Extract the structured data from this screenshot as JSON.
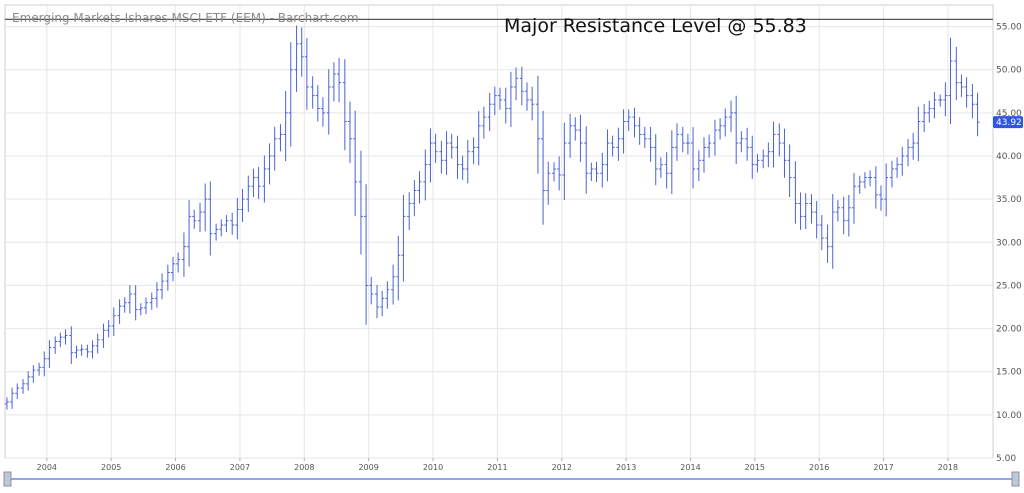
{
  "chart_data": {
    "type": "ohlc",
    "title": "Emerging Markets Ishares MSCI ETF (EEM) - Barchart.com",
    "annotation": "Major Resistance Level @ 55.83",
    "resistance_level": 55.83,
    "last_price": "43.92",
    "last_price_value": 43.92,
    "ylim": [
      5,
      57.5
    ],
    "xlim": [
      2003.35,
      2018.7
    ],
    "y_ticks": [
      "5.00",
      "10.00",
      "15.00",
      "20.00",
      "25.00",
      "30.00",
      "35.00",
      "40.00",
      "45.00",
      "50.00",
      "55.00"
    ],
    "y_tick_values": [
      5,
      10,
      15,
      20,
      25,
      30,
      35,
      40,
      45,
      50,
      55
    ],
    "x_ticks": [
      "2004",
      "2005",
      "2006",
      "2007",
      "2008",
      "2009",
      "2010",
      "2011",
      "2012",
      "2013",
      "2014",
      "2015",
      "2016",
      "2017",
      "2018"
    ],
    "x_tick_values": [
      2004,
      2005,
      2006,
      2007,
      2008,
      2009,
      2010,
      2011,
      2012,
      2013,
      2014,
      2015,
      2016,
      2017,
      2018
    ],
    "grid": true,
    "interval": "monthly",
    "series_color": "#4a62d8",
    "resistance_color": "#555555",
    "close_series": [
      [
        2003.38,
        11.5
      ],
      [
        2003.46,
        12.5
      ],
      [
        2003.54,
        13.1
      ],
      [
        2003.63,
        13.6
      ],
      [
        2003.71,
        14.4
      ],
      [
        2003.79,
        15.2
      ],
      [
        2003.88,
        15.5
      ],
      [
        2003.96,
        16.5
      ],
      [
        2004.04,
        17.8
      ],
      [
        2004.13,
        18.5
      ],
      [
        2004.21,
        19.0
      ],
      [
        2004.29,
        19.2
      ],
      [
        2004.38,
        17.2
      ],
      [
        2004.46,
        17.5
      ],
      [
        2004.54,
        17.6
      ],
      [
        2004.63,
        17.3
      ],
      [
        2004.71,
        18.0
      ],
      [
        2004.79,
        18.7
      ],
      [
        2004.88,
        19.8
      ],
      [
        2004.96,
        20.3
      ],
      [
        2005.04,
        21.5
      ],
      [
        2005.13,
        22.6
      ],
      [
        2005.21,
        23.0
      ],
      [
        2005.29,
        24.0
      ],
      [
        2005.38,
        22.2
      ],
      [
        2005.46,
        22.4
      ],
      [
        2005.54,
        23.0
      ],
      [
        2005.63,
        23.5
      ],
      [
        2005.71,
        24.5
      ],
      [
        2005.79,
        25.5
      ],
      [
        2005.88,
        26.5
      ],
      [
        2005.96,
        27.5
      ],
      [
        2006.04,
        28.0
      ],
      [
        2006.13,
        29.5
      ],
      [
        2006.21,
        33.0
      ],
      [
        2006.29,
        32.5
      ],
      [
        2006.38,
        33.5
      ],
      [
        2006.46,
        35.0
      ],
      [
        2006.54,
        31.0
      ],
      [
        2006.63,
        31.5
      ],
      [
        2006.71,
        32.0
      ],
      [
        2006.79,
        32.5
      ],
      [
        2006.88,
        32.0
      ],
      [
        2006.96,
        33.8
      ],
      [
        2007.04,
        35.0
      ],
      [
        2007.13,
        36.5
      ],
      [
        2007.21,
        37.5
      ],
      [
        2007.29,
        36.5
      ],
      [
        2007.38,
        38.5
      ],
      [
        2007.46,
        40.0
      ],
      [
        2007.54,
        42.0
      ],
      [
        2007.63,
        42.5
      ],
      [
        2007.71,
        45.0
      ],
      [
        2007.79,
        50.0
      ],
      [
        2007.88,
        53.0
      ],
      [
        2007.96,
        51.5
      ],
      [
        2008.04,
        48.0
      ],
      [
        2008.13,
        47.0
      ],
      [
        2008.21,
        45.5
      ],
      [
        2008.29,
        45.0
      ],
      [
        2008.38,
        48.0
      ],
      [
        2008.46,
        49.5
      ],
      [
        2008.54,
        48.5
      ],
      [
        2008.63,
        44.0
      ],
      [
        2008.71,
        42.0
      ],
      [
        2008.79,
        37.0
      ],
      [
        2008.88,
        33.0
      ],
      [
        2008.96,
        25.0
      ],
      [
        2009.04,
        24.0
      ],
      [
        2009.13,
        22.5
      ],
      [
        2009.21,
        23.5
      ],
      [
        2009.29,
        24.5
      ],
      [
        2009.38,
        26.0
      ],
      [
        2009.46,
        28.5
      ],
      [
        2009.54,
        33.0
      ],
      [
        2009.63,
        34.5
      ],
      [
        2009.71,
        36.0
      ],
      [
        2009.79,
        37.0
      ],
      [
        2009.88,
        39.0
      ],
      [
        2009.96,
        41.5
      ],
      [
        2010.04,
        40.5
      ],
      [
        2010.13,
        39.5
      ],
      [
        2010.21,
        41.5
      ],
      [
        2010.29,
        41.0
      ],
      [
        2010.38,
        39.0
      ],
      [
        2010.46,
        38.5
      ],
      [
        2010.54,
        40.5
      ],
      [
        2010.63,
        41.0
      ],
      [
        2010.71,
        43.5
      ],
      [
        2010.79,
        44.5
      ],
      [
        2010.88,
        46.0
      ],
      [
        2010.96,
        47.0
      ],
      [
        2011.04,
        46.5
      ],
      [
        2011.13,
        45.5
      ],
      [
        2011.21,
        48.0
      ],
      [
        2011.29,
        49.0
      ],
      [
        2011.38,
        47.5
      ],
      [
        2011.46,
        46.5
      ],
      [
        2011.54,
        46.0
      ],
      [
        2011.63,
        42.0
      ],
      [
        2011.71,
        36.0
      ],
      [
        2011.79,
        38.0
      ],
      [
        2011.88,
        38.5
      ],
      [
        2011.96,
        37.8
      ],
      [
        2012.04,
        41.5
      ],
      [
        2012.13,
        43.5
      ],
      [
        2012.21,
        43.0
      ],
      [
        2012.29,
        41.5
      ],
      [
        2012.38,
        38.0
      ],
      [
        2012.46,
        38.5
      ],
      [
        2012.54,
        38.0
      ],
      [
        2012.63,
        39.0
      ],
      [
        2012.71,
        41.5
      ],
      [
        2012.79,
        41.0
      ],
      [
        2012.88,
        42.0
      ],
      [
        2012.96,
        44.0
      ],
      [
        2013.04,
        44.5
      ],
      [
        2013.13,
        43.5
      ],
      [
        2013.21,
        42.5
      ],
      [
        2013.29,
        42.0
      ],
      [
        2013.38,
        41.0
      ],
      [
        2013.46,
        38.5
      ],
      [
        2013.54,
        39.0
      ],
      [
        2013.63,
        38.0
      ],
      [
        2013.71,
        41.0
      ],
      [
        2013.79,
        42.5
      ],
      [
        2013.88,
        41.5
      ],
      [
        2013.96,
        41.5
      ],
      [
        2014.04,
        38.5
      ],
      [
        2014.13,
        39.5
      ],
      [
        2014.21,
        41.0
      ],
      [
        2014.29,
        41.5
      ],
      [
        2014.38,
        43.0
      ],
      [
        2014.46,
        43.5
      ],
      [
        2014.54,
        44.5
      ],
      [
        2014.63,
        45.0
      ],
      [
        2014.71,
        41.5
      ],
      [
        2014.79,
        42.0
      ],
      [
        2014.88,
        41.0
      ],
      [
        2014.96,
        39.0
      ],
      [
        2015.04,
        39.5
      ],
      [
        2015.13,
        40.0
      ],
      [
        2015.21,
        40.5
      ],
      [
        2015.29,
        42.5
      ],
      [
        2015.38,
        41.5
      ],
      [
        2015.46,
        39.5
      ],
      [
        2015.54,
        37.5
      ],
      [
        2015.63,
        34.5
      ],
      [
        2015.71,
        33.0
      ],
      [
        2015.79,
        34.5
      ],
      [
        2015.88,
        33.5
      ],
      [
        2015.96,
        32.0
      ],
      [
        2016.04,
        30.5
      ],
      [
        2016.13,
        29.5
      ],
      [
        2016.21,
        33.5
      ],
      [
        2016.29,
        34.0
      ],
      [
        2016.38,
        32.5
      ],
      [
        2016.46,
        34.0
      ],
      [
        2016.54,
        36.5
      ],
      [
        2016.63,
        37.0
      ],
      [
        2016.71,
        37.5
      ],
      [
        2016.79,
        37.5
      ],
      [
        2016.88,
        35.5
      ],
      [
        2016.96,
        35.0
      ],
      [
        2017.04,
        37.5
      ],
      [
        2017.13,
        38.5
      ],
      [
        2017.21,
        39.0
      ],
      [
        2017.29,
        40.0
      ],
      [
        2017.38,
        41.0
      ],
      [
        2017.46,
        41.5
      ],
      [
        2017.54,
        44.0
      ],
      [
        2017.63,
        45.0
      ],
      [
        2017.71,
        45.5
      ],
      [
        2017.79,
        46.5
      ],
      [
        2017.88,
        46.5
      ],
      [
        2017.96,
        47.0
      ],
      [
        2018.04,
        51.0
      ],
      [
        2018.13,
        48.5
      ],
      [
        2018.21,
        48.0
      ],
      [
        2018.29,
        47.0
      ],
      [
        2018.38,
        46.0
      ],
      [
        2018.46,
        43.92
      ]
    ]
  },
  "navigator": {
    "handle_left": "",
    "handle_right": ""
  }
}
